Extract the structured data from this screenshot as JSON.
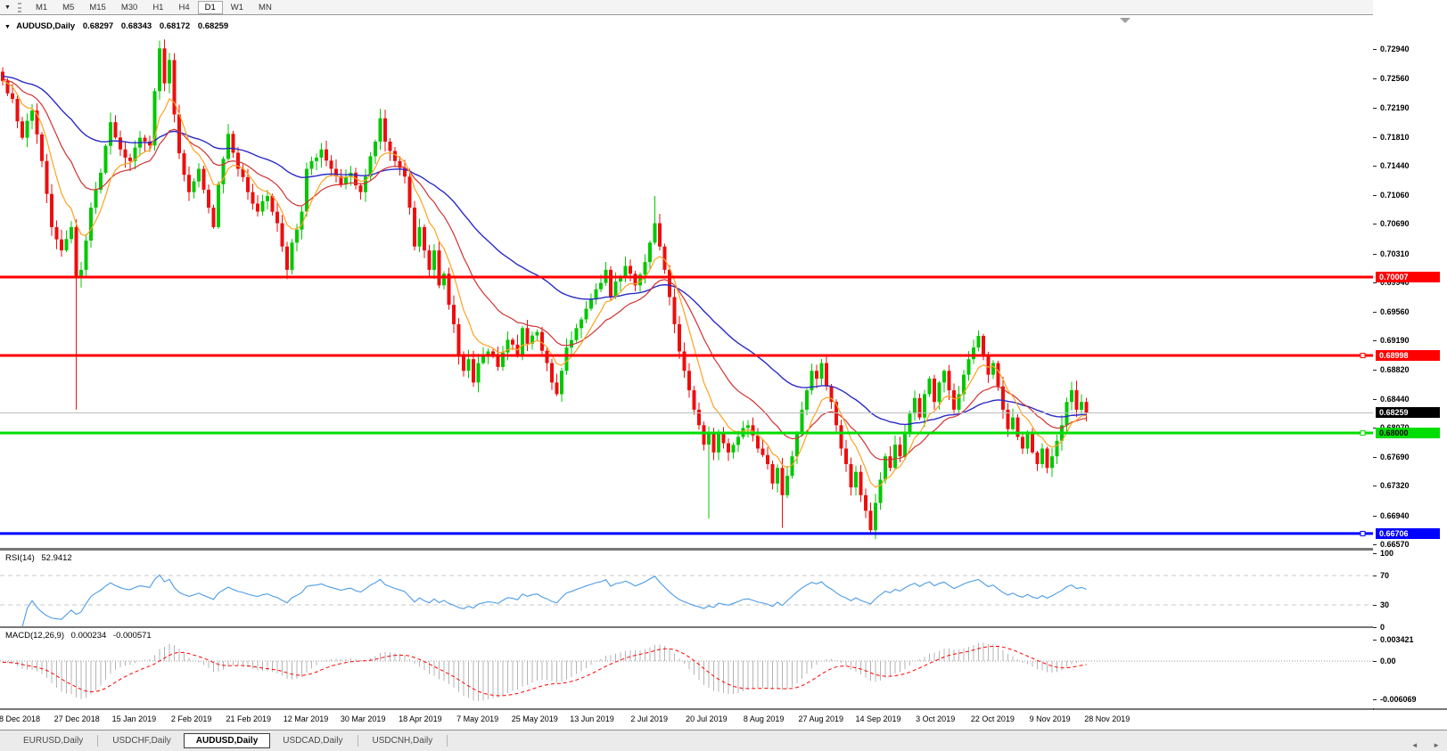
{
  "icons": {
    "dropdown": "▼",
    "tab_scroll_left": "◄",
    "tab_scroll_right": "►"
  },
  "toolbar": {
    "timeframes": [
      "M1",
      "M5",
      "M15",
      "M30",
      "H1",
      "H4",
      "D1",
      "W1",
      "MN"
    ],
    "active_timeframe": "D1"
  },
  "chart": {
    "title": "AUDUSD,Daily",
    "ohlc": {
      "open": "0.68297",
      "high": "0.68343",
      "low": "0.68172",
      "close": "0.68259"
    },
    "price_axis_ticks": [
      "0.72940",
      "0.72560",
      "0.72190",
      "0.71810",
      "0.71440",
      "0.71060",
      "0.70690",
      "0.70310",
      "0.69940",
      "0.69560",
      "0.69190",
      "0.68820",
      "0.68440",
      "0.68070",
      "0.67690",
      "0.67320",
      "0.66940",
      "0.66570"
    ],
    "hlines": [
      {
        "label": "0.70007",
        "price": 0.70007,
        "color": "#FF0000",
        "text_color": "#FFFFFF",
        "handle": false
      },
      {
        "label": "0.68998",
        "price": 0.68998,
        "color": "#FF0000",
        "text_color": "#FFFFFF",
        "handle": true
      },
      {
        "label": "0.68000",
        "price": 0.68,
        "color": "#00DE00",
        "text_color": "#000000",
        "handle": true
      },
      {
        "label": "0.66706",
        "price": 0.66706,
        "color": "#0000FF",
        "text_color": "#FFFFFF",
        "handle": true
      }
    ],
    "current_price": {
      "label": "0.68259",
      "price": 0.68259,
      "badge_bg": "#000000",
      "badge_fg": "#FFFFFF",
      "line_color": "#BDBDBD"
    }
  },
  "indicators": {
    "rsi": {
      "label": "RSI(14)",
      "value": "52.9412",
      "axis": [
        {
          "v": 100,
          "label": "100"
        },
        {
          "v": 70,
          "label": "70"
        },
        {
          "v": 30,
          "label": "30"
        },
        {
          "v": 0,
          "label": "0"
        }
      ],
      "dashed_levels": [
        70,
        30
      ]
    },
    "macd": {
      "label": "MACD(12,26,9)",
      "value_main": "0.000234",
      "value_signal": "-0.000571",
      "axis": [
        {
          "v": 0.003421,
          "label": "0.003421"
        },
        {
          "v": 0,
          "label": "0.00"
        },
        {
          "v": -0.006069,
          "label": "-0.006069"
        }
      ]
    }
  },
  "chart_data": {
    "type": "candlestick",
    "symbol": "AUDUSD",
    "timeframe": "Daily",
    "num_candles": 222,
    "y_axis_range": {
      "top": 0.7365,
      "bottom": 0.6629
    },
    "price_anchors": [
      [
        0,
        0.7253
      ],
      [
        2,
        0.723
      ],
      [
        4,
        0.718
      ],
      [
        6,
        0.7215
      ],
      [
        8,
        0.715
      ],
      [
        10,
        0.7065
      ],
      [
        12,
        0.7035
      ],
      [
        14,
        0.7065
      ],
      [
        15,
        0.7
      ],
      [
        16,
        0.701
      ],
      [
        18,
        0.709
      ],
      [
        20,
        0.7135
      ],
      [
        22,
        0.72
      ],
      [
        24,
        0.7165
      ],
      [
        26,
        0.715
      ],
      [
        28,
        0.718
      ],
      [
        30,
        0.717
      ],
      [
        31,
        0.724
      ],
      [
        32,
        0.7295
      ],
      [
        33,
        0.725
      ],
      [
        34,
        0.728
      ],
      [
        35,
        0.721
      ],
      [
        36,
        0.716
      ],
      [
        38,
        0.711
      ],
      [
        40,
        0.714
      ],
      [
        42,
        0.709
      ],
      [
        43,
        0.7065
      ],
      [
        44,
        0.712
      ],
      [
        46,
        0.7185
      ],
      [
        48,
        0.714
      ],
      [
        50,
        0.711
      ],
      [
        52,
        0.7085
      ],
      [
        54,
        0.7105
      ],
      [
        56,
        0.707
      ],
      [
        57,
        0.704
      ],
      [
        58,
        0.701
      ],
      [
        59,
        0.7045
      ],
      [
        61,
        0.7085
      ],
      [
        62,
        0.714
      ],
      [
        63,
        0.715
      ],
      [
        65,
        0.7165
      ],
      [
        67,
        0.714
      ],
      [
        69,
        0.712
      ],
      [
        71,
        0.7135
      ],
      [
        73,
        0.711
      ],
      [
        74,
        0.713
      ],
      [
        76,
        0.7175
      ],
      [
        77,
        0.7205
      ],
      [
        78,
        0.7175
      ],
      [
        80,
        0.715
      ],
      [
        82,
        0.713
      ],
      [
        83,
        0.709
      ],
      [
        84,
        0.704
      ],
      [
        85,
        0.7065
      ],
      [
        86,
        0.7035
      ],
      [
        87,
        0.701
      ],
      [
        88,
        0.7035
      ],
      [
        89,
        0.699
      ],
      [
        90,
        0.7005
      ],
      [
        91,
        0.6965
      ],
      [
        92,
        0.694
      ],
      [
        93,
        0.69
      ],
      [
        94,
        0.688
      ],
      [
        95,
        0.6895
      ],
      [
        96,
        0.6865
      ],
      [
        97,
        0.689
      ],
      [
        99,
        0.6905
      ],
      [
        101,
        0.6885
      ],
      [
        103,
        0.692
      ],
      [
        105,
        0.69
      ],
      [
        106,
        0.6935
      ],
      [
        107,
        0.6915
      ],
      [
        109,
        0.693
      ],
      [
        111,
        0.689
      ],
      [
        112,
        0.6865
      ],
      [
        113,
        0.685
      ],
      [
        114,
        0.688
      ],
      [
        115,
        0.691
      ],
      [
        117,
        0.6935
      ],
      [
        119,
        0.696
      ],
      [
        121,
        0.6985
      ],
      [
        123,
        0.701
      ],
      [
        124,
        0.6975
      ],
      [
        125,
        0.6995
      ],
      [
        127,
        0.7015
      ],
      [
        129,
        0.699
      ],
      [
        131,
        0.702
      ],
      [
        132,
        0.7045
      ],
      [
        133,
        0.707
      ],
      [
        134,
        0.704
      ],
      [
        135,
        0.701
      ],
      [
        136,
        0.6975
      ],
      [
        137,
        0.694
      ],
      [
        138,
        0.6905
      ],
      [
        139,
        0.688
      ],
      [
        140,
        0.6855
      ],
      [
        141,
        0.683
      ],
      [
        142,
        0.681
      ],
      [
        143,
        0.6785
      ],
      [
        144,
        0.68
      ],
      [
        145,
        0.6775
      ],
      [
        146,
        0.68
      ],
      [
        148,
        0.6775
      ],
      [
        150,
        0.6795
      ],
      [
        152,
        0.681
      ],
      [
        154,
        0.678
      ],
      [
        156,
        0.676
      ],
      [
        157,
        0.6735
      ],
      [
        158,
        0.6755
      ],
      [
        159,
        0.672
      ],
      [
        160,
        0.6745
      ],
      [
        161,
        0.677
      ],
      [
        162,
        0.68
      ],
      [
        163,
        0.683
      ],
      [
        164,
        0.6855
      ],
      [
        165,
        0.688
      ],
      [
        166,
        0.687
      ],
      [
        167,
        0.689
      ],
      [
        168,
        0.686
      ],
      [
        169,
        0.684
      ],
      [
        170,
        0.681
      ],
      [
        171,
        0.678
      ],
      [
        172,
        0.676
      ],
      [
        173,
        0.673
      ],
      [
        174,
        0.675
      ],
      [
        175,
        0.672
      ],
      [
        176,
        0.67
      ],
      [
        177,
        0.6675
      ],
      [
        178,
        0.671
      ],
      [
        179,
        0.674
      ],
      [
        180,
        0.677
      ],
      [
        181,
        0.6755
      ],
      [
        182,
        0.6785
      ],
      [
        183,
        0.677
      ],
      [
        184,
        0.68
      ],
      [
        185,
        0.6825
      ],
      [
        186,
        0.6845
      ],
      [
        187,
        0.682
      ],
      [
        188,
        0.685
      ],
      [
        189,
        0.687
      ],
      [
        190,
        0.684
      ],
      [
        191,
        0.6865
      ],
      [
        192,
        0.688
      ],
      [
        193,
        0.6855
      ],
      [
        194,
        0.683
      ],
      [
        195,
        0.685
      ],
      [
        196,
        0.6875
      ],
      [
        197,
        0.6895
      ],
      [
        198,
        0.691
      ],
      [
        199,
        0.6925
      ],
      [
        200,
        0.69
      ],
      [
        201,
        0.6875
      ],
      [
        202,
        0.689
      ],
      [
        203,
        0.686
      ],
      [
        204,
        0.683
      ],
      [
        205,
        0.6805
      ],
      [
        206,
        0.682
      ],
      [
        207,
        0.6795
      ],
      [
        208,
        0.678
      ],
      [
        209,
        0.68
      ],
      [
        210,
        0.6775
      ],
      [
        211,
        0.676
      ],
      [
        212,
        0.678
      ],
      [
        213,
        0.6755
      ],
      [
        214,
        0.677
      ],
      [
        215,
        0.679
      ],
      [
        216,
        0.681
      ],
      [
        217,
        0.684
      ],
      [
        218,
        0.6855
      ],
      [
        219,
        0.683
      ],
      [
        220,
        0.684
      ],
      [
        221,
        0.68259
      ]
    ],
    "special_wicks": {
      "15": {
        "low": 0.683
      },
      "32": {
        "high": 0.7305
      },
      "58": {
        "low": 0.6998
      },
      "133": {
        "high": 0.7105
      },
      "144": {
        "low": 0.669
      },
      "159": {
        "low": 0.6678
      },
      "177": {
        "low": 0.6672
      },
      "199": {
        "high": 0.6932
      }
    },
    "warmup": {
      "bars": 60,
      "start": 0.727
    },
    "ma_periods": {
      "fast": 8,
      "mid": 20,
      "slow": 50
    },
    "rsi_period": 14,
    "macd_params": [
      12,
      26,
      9
    ],
    "x_axis_dates": [
      "8 Dec 2018",
      "27 Dec 2018",
      "15 Jan 2019",
      "2 Feb 2019",
      "21 Feb 2019",
      "12 Mar 2019",
      "30 Mar 2019",
      "18 Apr 2019",
      "7 May 2019",
      "25 May 2019",
      "13 Jun 2019",
      "2 Jul 2019",
      "20 Jul 2019",
      "8 Aug 2019",
      "27 Aug 2019",
      "14 Sep 2019",
      "3 Oct 2019",
      "22 Oct 2019",
      "9 Nov 2019",
      "28 Nov 2019"
    ],
    "colors": {
      "up": "#00C800",
      "down": "#ED0E0E",
      "ma_fast": "#FFA21F",
      "ma_mid": "#D23232",
      "ma_slow": "#2A2AC8",
      "rsi_line": "#4C9BE8",
      "rsi_level": "#C8C8C8",
      "macd_hist": "#B4B4B4",
      "macd_signal": "#FF0000",
      "shift_marker": "#A0A0A0"
    }
  },
  "tabs": {
    "items": [
      "EURUSD,Daily",
      "USDCHF,Daily",
      "AUDUSD,Daily",
      "USDCAD,Daily",
      "USDCNH,Daily"
    ],
    "active_index": 2
  }
}
